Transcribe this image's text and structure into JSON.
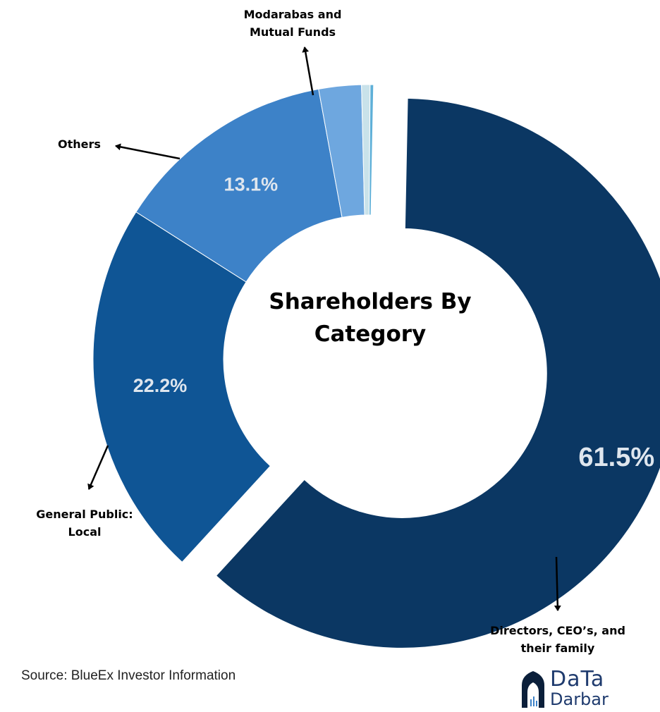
{
  "chart_data": {
    "type": "pie",
    "title": "Shareholders By Category",
    "slices": [
      {
        "label": "Directors, CEO’s, and their family",
        "value": 61.5,
        "value_label": "61.5%",
        "color": "#0b3763",
        "exploded": true
      },
      {
        "label": "General Public: Local",
        "value": 22.2,
        "value_label": "22.2%",
        "color": "#0f5595"
      },
      {
        "label": "Others",
        "value": 13.1,
        "value_label": "13.1%",
        "color": "#3d82c8"
      },
      {
        "label": "Modarabas and Mutual Funds",
        "value": 2.5,
        "value_label": "",
        "color": "#6ea7df"
      },
      {
        "label": "",
        "value": 0.5,
        "value_label": "",
        "color": "#c9e2ea"
      },
      {
        "label": "",
        "value": 0.2,
        "value_label": "",
        "color": "#5fb0d8"
      }
    ]
  },
  "labels": {
    "modarabas": "Modarabas and\nMutual Funds",
    "others": "Others",
    "general_public": "General Public:\nLocal",
    "directors": "Directors, CEO’s, and\ntheir family"
  },
  "source": "Source: BlueEx Investor Information",
  "logo": {
    "line1": "DaTa",
    "line2": "Darbar",
    "icon": "mosque-dome-icon"
  }
}
